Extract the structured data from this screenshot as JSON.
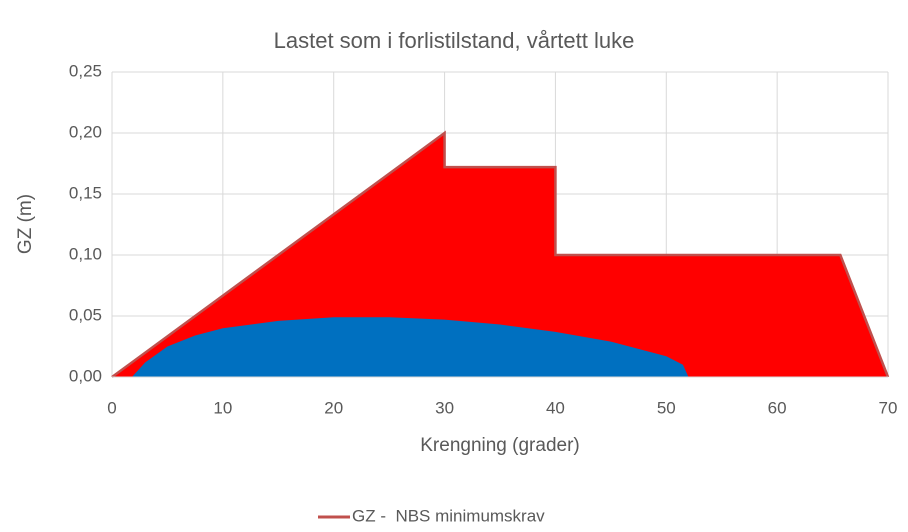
{
  "chart_data": {
    "type": "area",
    "title": "Lastet som i forlistilstand, vårtett luke",
    "xlabel": "Krengning (grader)",
    "ylabel": "GZ (m)",
    "series": [
      {
        "name": "GZ -  NBS minimumskrav",
        "color": "#ff0000",
        "line_color": "#c0504d",
        "x": [
          0,
          30,
          30,
          40,
          40,
          65.7,
          70
        ],
        "values": [
          0,
          0.2,
          0.172,
          0.172,
          0.1,
          0.1,
          0
        ]
      },
      {
        "color": "#0070c0",
        "x": [
          1.8,
          3,
          5,
          7.5,
          10,
          15,
          20,
          25,
          30,
          35,
          40,
          45,
          50,
          51.5,
          52
        ],
        "values": [
          0,
          0.012,
          0.025,
          0.034,
          0.04,
          0.046,
          0.049,
          0.049,
          0.047,
          0.043,
          0.037,
          0.029,
          0.017,
          0.01,
          0
        ]
      }
    ],
    "xlim": [
      0,
      70
    ],
    "xticks": [
      0,
      10,
      20,
      30,
      40,
      50,
      60,
      70
    ],
    "ylim": [
      0,
      0.25
    ],
    "yticks": [
      {
        "value": 0,
        "label": "0,00"
      },
      {
        "value": 0.05,
        "label": "0,05"
      },
      {
        "value": 0.1,
        "label": "0,10"
      },
      {
        "value": 0.15,
        "label": "0,15"
      },
      {
        "value": 0.2,
        "label": "0,20"
      },
      {
        "value": 0.25,
        "label": "0,25"
      }
    ],
    "grid": true,
    "legend": "bottom"
  }
}
